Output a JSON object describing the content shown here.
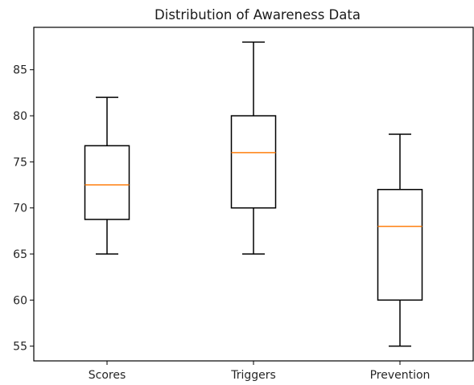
{
  "chart_data": {
    "type": "box",
    "title": "Distribution of Awareness Data",
    "xlabel": "",
    "ylabel": "",
    "categories": [
      "Scores",
      "Triggers",
      "Prevention"
    ],
    "boxes": [
      {
        "name": "Scores",
        "whisker_low": 65,
        "q1": 68.75,
        "median": 72.5,
        "q3": 76.75,
        "whisker_high": 82
      },
      {
        "name": "Triggers",
        "whisker_low": 65,
        "q1": 70,
        "median": 76,
        "q3": 80,
        "whisker_high": 88
      },
      {
        "name": "Prevention",
        "whisker_low": 55,
        "q1": 60,
        "median": 68,
        "q3": 72,
        "whisker_high": 78
      }
    ],
    "ylim": [
      53.4,
      89.6
    ],
    "yticks": [
      55,
      60,
      65,
      70,
      75,
      80,
      85
    ],
    "grid": false,
    "colors": {
      "box": "#000000",
      "median": "#ff7f0e",
      "axes": "#000000"
    }
  }
}
